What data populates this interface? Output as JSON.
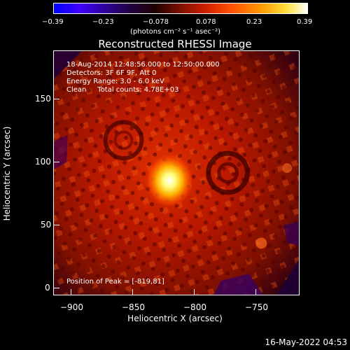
{
  "colorbar": {
    "ticks": [
      "−0.39",
      "−0.23",
      "−0.078",
      "0.078",
      "0.23",
      "0.39"
    ],
    "unit_label": "(photons cm⁻² s⁻¹ asec⁻²)",
    "colors": [
      "#0000ff",
      "#200040",
      "#801000",
      "#ff5000",
      "#ffe040",
      "#ffffff"
    ]
  },
  "title": "Reconstructed RHESSI Image",
  "info": {
    "line1": "18-Aug-2014 12:48:56.000 to 12:50:00.000",
    "line2": "Detectors: 3F 6F 9F, Att 0",
    "line3": "Energy Range: 3.0 - 6.0 keV",
    "line4": "Clean     Total counts: 4.78E+03"
  },
  "peak_label": "Position of Peak = [-819,81]",
  "axes": {
    "x_label": "Heliocentric X (arcsec)",
    "y_label": "Heliocentric Y (arcsec)",
    "x_ticks": [
      "−900",
      "−850",
      "−800",
      "−750"
    ],
    "y_ticks": [
      "150",
      "100",
      "50",
      "0"
    ]
  },
  "timestamp": "16-May-2022 04:53"
}
